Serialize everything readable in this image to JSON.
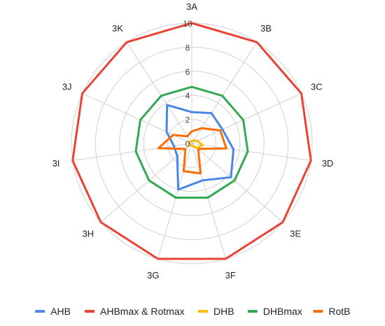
{
  "chart_data": {
    "type": "radar",
    "categories": [
      "3A",
      "3B",
      "3C",
      "3D",
      "3E",
      "3F",
      "3G",
      "3H",
      "3I",
      "3J",
      "3K"
    ],
    "rlim": [
      0,
      10
    ],
    "ticks": [
      "0",
      "2",
      "4",
      "6",
      "8",
      "10"
    ],
    "grid": true,
    "legend_position": "bottom",
    "series": [
      {
        "name": "AHB",
        "color": "#4a86e8",
        "values": [
          2.6,
          3.0,
          2.8,
          3.5,
          4.3,
          3.2,
          4.0,
          1.6,
          1.5,
          2.3,
          3.8
        ]
      },
      {
        "name": "AHBmax & Rotmax",
        "color": "#ea4335",
        "values": [
          10,
          10,
          10,
          10,
          10,
          10,
          10,
          10,
          10,
          10,
          10
        ]
      },
      {
        "name": "DHB",
        "color": "#fbbc04",
        "values": [
          0.2,
          0.3,
          0.5,
          0.9,
          0.6,
          0.2,
          0.2,
          0.2,
          0.2,
          0.2,
          0.2
        ]
      },
      {
        "name": "DHBmax",
        "color": "#34a853",
        "values": [
          4.7,
          4.7,
          4.7,
          4.7,
          4.7,
          4.7,
          4.7,
          4.7,
          4.7,
          4.7,
          4.7
        ]
      },
      {
        "name": "RotB",
        "color": "#ff6d01",
        "values": [
          1.0,
          1.5,
          2.6,
          2.9,
          0.7,
          2.6,
          2.4,
          0.7,
          2.8,
          1.7,
          0.7
        ]
      }
    ]
  }
}
